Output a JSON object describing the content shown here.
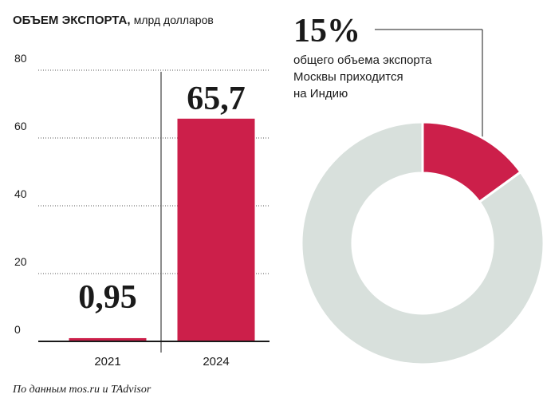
{
  "chart_data": [
    {
      "type": "bar",
      "title": "ОБЪЕМ ЭКСПОРТА,",
      "subtitle": "млрд долларов",
      "categories": [
        "2021",
        "2024"
      ],
      "values": [
        0.95,
        65.7
      ],
      "value_labels": [
        "0,95",
        "65,7"
      ],
      "color": "#cc1f4a",
      "ylim": [
        0,
        80
      ],
      "yticks": [
        0,
        20,
        40,
        60,
        80
      ],
      "grid": true,
      "source": "По данным mos.ru и TAdvisor"
    },
    {
      "type": "donut",
      "categories": [
        null,
        null
      ],
      "values": [
        15,
        85
      ],
      "value_labels": [
        "15%",
        null
      ],
      "colors": [
        "#cc1f4a",
        "#d8e0dc"
      ],
      "annotation_lines": [
        "общего объема экспорта",
        "Москвы приходится",
        "на Индию"
      ]
    }
  ]
}
